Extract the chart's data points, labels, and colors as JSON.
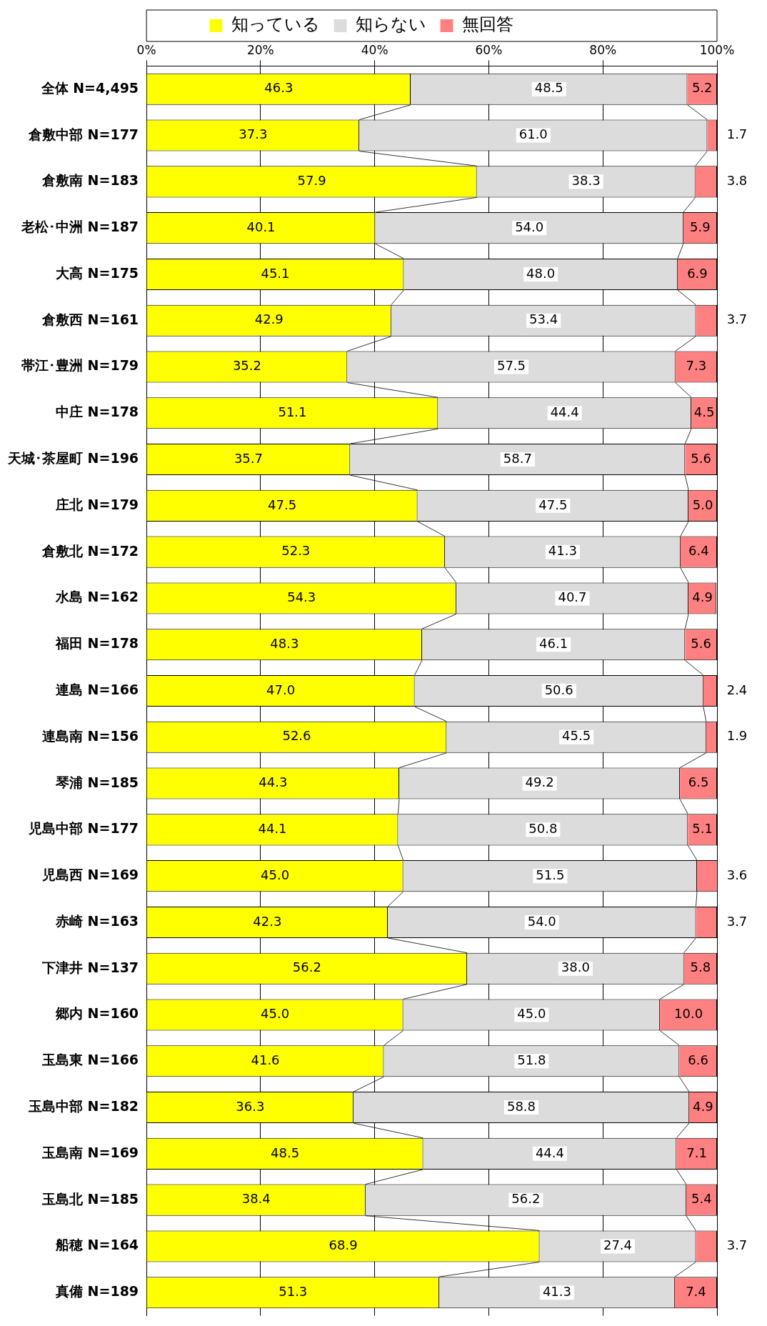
{
  "chart_data": {
    "type": "bar",
    "orientation": "horizontal",
    "stacked": true,
    "grid": "x",
    "legend": "top",
    "categories": [
      "全体 N=4,495",
      "倉敷中部 N=177",
      "倉敷南 N=183",
      "老松･中洲 N=187",
      "大高 N=175",
      "倉敷西 N=161",
      "帯江･豊洲 N=179",
      "中庄 N=178",
      "天城･茶屋町 N=196",
      "庄北 N=179",
      "倉敷北 N=172",
      "水島 N=162",
      "福田 N=178",
      "連島 N=166",
      "連島南 N=156",
      "琴浦 N=185",
      "児島中部 N=177",
      "児島西 N=169",
      "赤崎 N=163",
      "下津井 N=137",
      "郷内 N=160",
      "玉島東 N=166",
      "玉島中部 N=182",
      "玉島南 N=169",
      "玉島北 N=185",
      "船穂 N=164",
      "真備 N=189"
    ],
    "xlim": [
      0,
      100
    ],
    "xticks": [
      {
        "value": 0,
        "label": "0%"
      },
      {
        "value": 20,
        "label": "20%"
      },
      {
        "value": 40,
        "label": "40%"
      },
      {
        "value": 60,
        "label": "60%"
      },
      {
        "value": 80,
        "label": "80%"
      },
      {
        "value": 100,
        "label": "100%"
      }
    ],
    "series": [
      {
        "name": "知っている",
        "color": "#ffff00",
        "values": [
          46.3,
          37.3,
          57.9,
          40.1,
          45.1,
          42.9,
          35.2,
          51.1,
          35.7,
          47.5,
          52.3,
          54.3,
          48.3,
          47.0,
          52.6,
          44.3,
          44.1,
          45.0,
          42.3,
          56.2,
          45.0,
          41.6,
          36.3,
          48.5,
          38.4,
          68.9,
          51.3
        ],
        "value_labels": [
          "46.3",
          "37.3",
          "57.9",
          "40.1",
          "45.1",
          "42.9",
          "35.2",
          "51.1",
          "35.7",
          "47.5",
          "52.3",
          "54.3",
          "48.3",
          "47.0",
          "52.6",
          "44.3",
          "44.1",
          "45.0",
          "42.3",
          "56.2",
          "45.0",
          "41.6",
          "36.3",
          "48.5",
          "38.4",
          "68.9",
          "51.3"
        ]
      },
      {
        "name": "知らない",
        "color": "#dcdcdc",
        "values": [
          48.5,
          61.0,
          38.3,
          54.0,
          48.0,
          53.4,
          57.5,
          44.4,
          58.7,
          47.5,
          41.3,
          40.7,
          46.1,
          50.6,
          45.5,
          49.2,
          50.8,
          51.5,
          54.0,
          38.0,
          45.0,
          51.8,
          58.8,
          44.4,
          56.2,
          27.4,
          41.3
        ],
        "value_labels": [
          "48.5",
          "61.0",
          "38.3",
          "54.0",
          "48.0",
          "53.4",
          "57.5",
          "44.4",
          "58.7",
          "47.5",
          "41.3",
          "40.7",
          "46.1",
          "50.6",
          "45.5",
          "49.2",
          "50.8",
          "51.5",
          "54.0",
          "38.0",
          "45.0",
          "51.8",
          "58.8",
          "44.4",
          "56.2",
          "27.4",
          "41.3"
        ]
      },
      {
        "name": "無回答",
        "color": "#ff8080",
        "values": [
          5.2,
          1.7,
          3.8,
          5.9,
          6.9,
          3.7,
          7.3,
          4.5,
          5.6,
          5.0,
          6.4,
          4.9,
          5.6,
          2.4,
          1.9,
          6.5,
          5.1,
          3.6,
          3.7,
          5.8,
          10.0,
          6.6,
          4.9,
          7.1,
          5.4,
          3.7,
          7.4
        ],
        "value_labels": [
          "5.2",
          "1.7",
          "3.8",
          "5.9",
          "6.9",
          "3.7",
          "7.3",
          "4.5",
          "5.6",
          "5.0",
          "6.4",
          "4.9",
          "5.6",
          "2.4",
          "1.9",
          "6.5",
          "5.1",
          "3.6",
          "3.7",
          "5.8",
          "10.0",
          "6.6",
          "4.9",
          "7.1",
          "5.4",
          "3.7",
          "7.4"
        ]
      }
    ]
  }
}
